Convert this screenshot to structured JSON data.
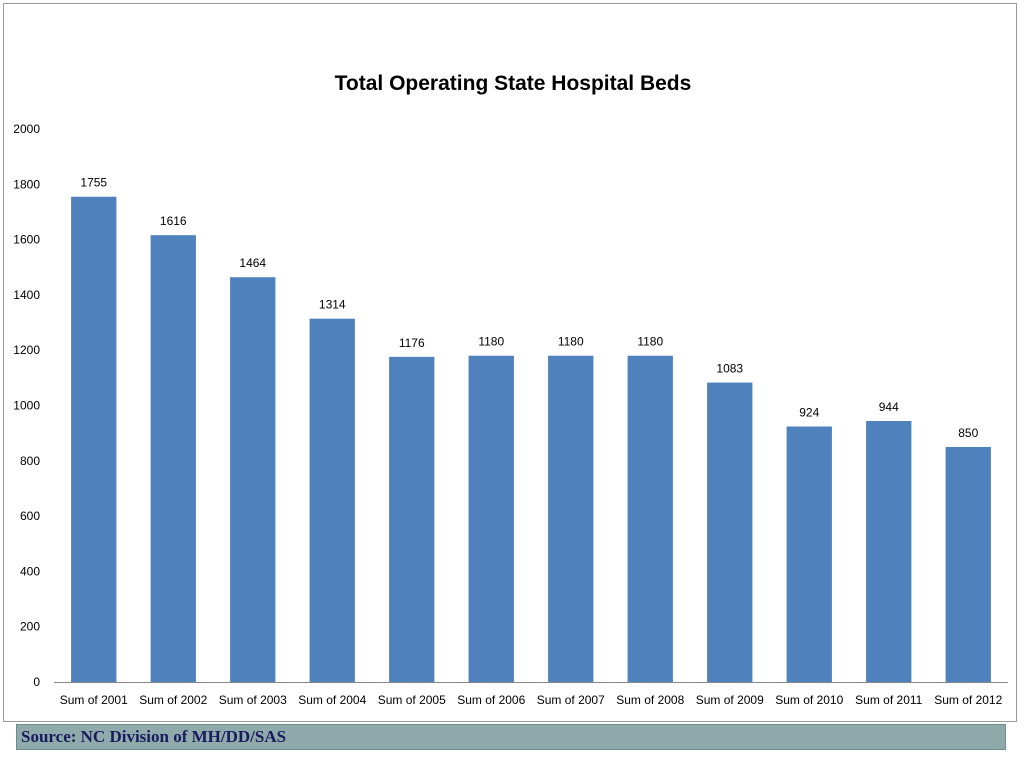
{
  "chart_data": {
    "type": "bar",
    "title": "Total Operating State Hospital Beds",
    "categories": [
      "Sum of 2001",
      "Sum of 2002",
      "Sum of 2003",
      "Sum of 2004",
      "Sum of 2005",
      "Sum of 2006",
      "Sum of 2007",
      "Sum of 2008",
      "Sum of 2009",
      "Sum of 2010",
      "Sum of 2011",
      "Sum of 2012"
    ],
    "values": [
      1755,
      1616,
      1464,
      1314,
      1176,
      1180,
      1180,
      1180,
      1083,
      924,
      944,
      850
    ],
    "data_labels": [
      "1755",
      "1616",
      "1464",
      "1314",
      "1176",
      "1180",
      "1180",
      "1180",
      "1083",
      "924",
      "944",
      "850"
    ],
    "y_ticks": [
      0,
      200,
      400,
      600,
      800,
      1000,
      1200,
      1400,
      1600,
      1800,
      2000
    ],
    "ylim": [
      0,
      2000
    ],
    "xlabel": "",
    "ylabel": "",
    "grid": false,
    "legend": "none",
    "colors": {
      "bar": "#4f81bd",
      "axis": "#868686",
      "text": "#000000"
    }
  },
  "footer": {
    "source": "Source: NC Division of MH/DD/SAS"
  }
}
